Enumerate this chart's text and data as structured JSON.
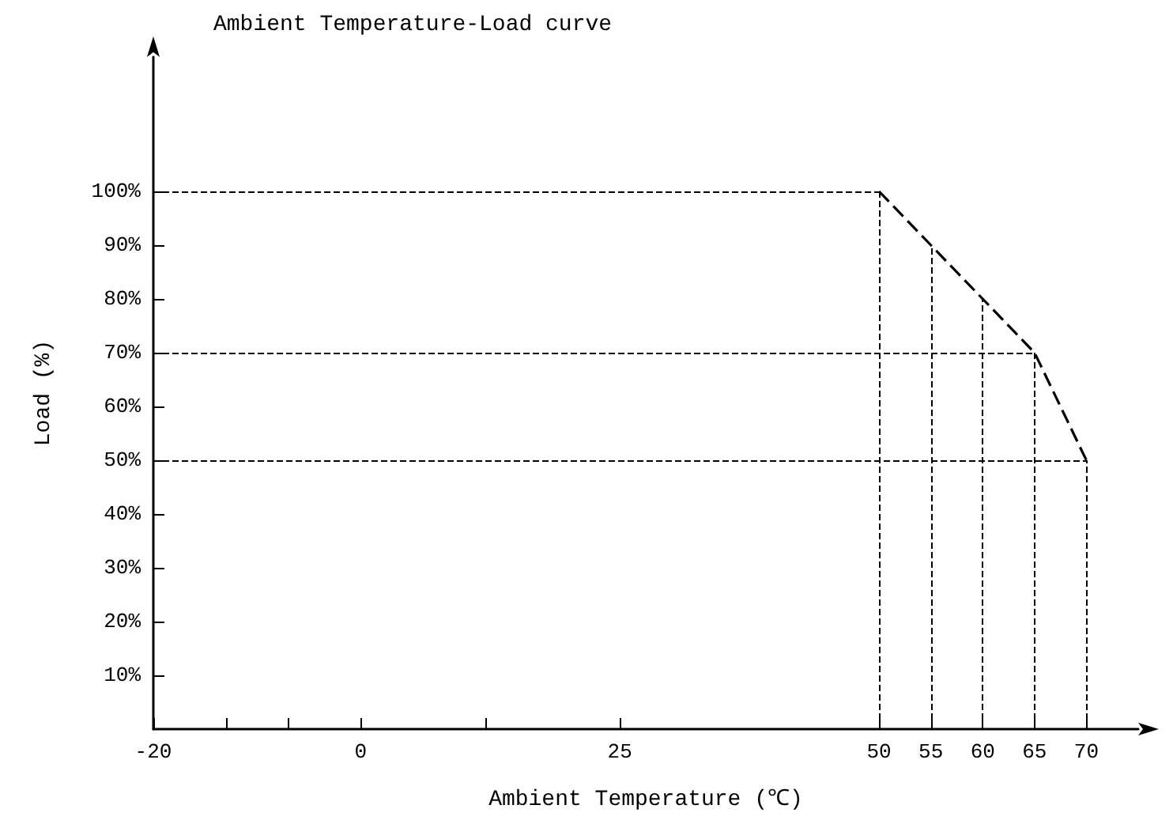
{
  "chart_data": {
    "type": "line",
    "title": "Ambient Temperature-Load curve",
    "xlabel": "Ambient Temperature (℃)",
    "ylabel": "Load (%)",
    "x": [
      50,
      55,
      60,
      65,
      70
    ],
    "series": [
      {
        "color": "#000000",
        "values": [
          100,
          90,
          80,
          70,
          50
        ]
      }
    ],
    "xlim": [
      -20,
      75
    ],
    "ylim": [
      0,
      125
    ],
    "xticks": [
      -20,
      {
        "value": -13,
        "label": null
      },
      {
        "value": -7,
        "label": null
      },
      0,
      {
        "value": 12,
        "label": null
      },
      25,
      50,
      55,
      60,
      65,
      70
    ],
    "yticks": [
      {
        "value": 10,
        "label": "10%"
      },
      {
        "value": 20,
        "label": "20%"
      },
      {
        "value": 30,
        "label": "30%"
      },
      {
        "value": 40,
        "label": "40%"
      },
      {
        "value": 50,
        "label": "50%"
      },
      {
        "value": 60,
        "label": "60%"
      },
      {
        "value": 70,
        "label": "70%"
      },
      {
        "value": 80,
        "label": "80%"
      },
      {
        "value": 90,
        "label": "90%"
      },
      {
        "value": 100,
        "label": "100%"
      }
    ],
    "ref_lines": [
      {
        "axis": "y",
        "value": 100,
        "line_style": "dashed"
      },
      {
        "axis": "y",
        "value": 70,
        "line_style": "dashed"
      },
      {
        "axis": "y",
        "value": 50,
        "line_style": "dashed"
      },
      {
        "axis": "x",
        "value": 50,
        "line_style": "dashed"
      },
      {
        "axis": "x",
        "value": 55,
        "line_style": "dashed"
      },
      {
        "axis": "x",
        "value": 60,
        "line_style": "dashed"
      },
      {
        "axis": "x",
        "value": 65,
        "line_style": "dashed"
      },
      {
        "axis": "x",
        "value": 70,
        "line_style": "dashed"
      }
    ],
    "line_style": "dashed",
    "marker": "none",
    "grid": false
  }
}
